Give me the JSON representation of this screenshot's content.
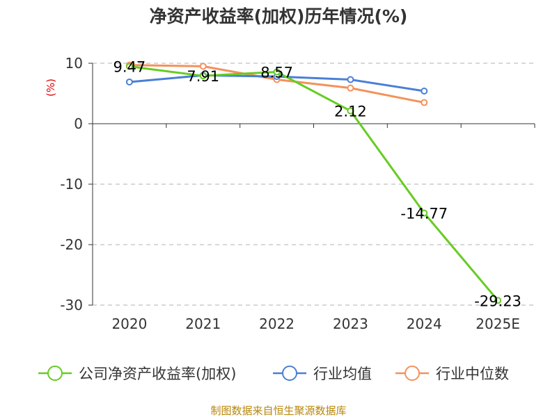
{
  "chart_data": {
    "type": "line",
    "title": "净资产收益率(加权)历年情况(%)",
    "ylabel": "(%)",
    "xlabel": "",
    "categories": [
      "2020",
      "2021",
      "2022",
      "2023",
      "2024",
      "2025E"
    ],
    "ylim": [
      -30,
      10
    ],
    "yticks": [
      10,
      0,
      -10,
      -20,
      -30
    ],
    "grid": true,
    "legend_position": "bottom",
    "series": [
      {
        "name": "公司净资产收益率(加权)",
        "color": "#66cc22",
        "values": [
          9.47,
          7.91,
          8.57,
          2.12,
          -14.77,
          -29.23
        ],
        "labels": [
          "9.47",
          "7.91",
          "8.57",
          "2.12",
          "-14.77",
          "-29.23"
        ]
      },
      {
        "name": "行业均值",
        "color": "#4a7fd6",
        "values": [
          6.9,
          8.0,
          7.8,
          7.3,
          5.4,
          null
        ]
      },
      {
        "name": "行业中位数",
        "color": "#f4915b",
        "values": [
          9.7,
          9.5,
          7.3,
          5.9,
          3.5,
          null
        ]
      }
    ]
  },
  "source": "制图数据来自恒生聚源数据库"
}
